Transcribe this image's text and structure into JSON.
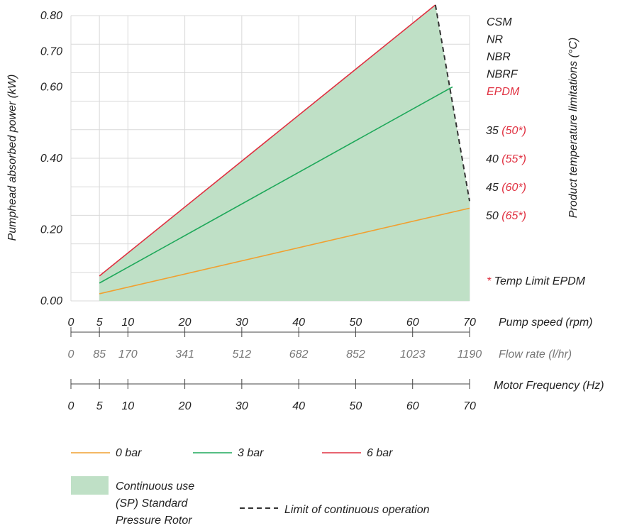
{
  "chart_data": {
    "type": "line",
    "y_axis": {
      "label": "Pumphead absorbed power (kW)",
      "ticks": [
        "0.00",
        "0.20",
        "0.40",
        "0.60",
        "0.70",
        "0.80"
      ],
      "ylim": [
        0,
        0.8
      ]
    },
    "x_axes": [
      {
        "label": "Pump speed (rpm)",
        "ticks": [
          "0",
          "5",
          "10",
          "20",
          "30",
          "40",
          "50",
          "60",
          "70"
        ]
      },
      {
        "label": "Flow rate (l/hr)",
        "ticks": [
          "0",
          "85",
          "170",
          "341",
          "512",
          "682",
          "852",
          "1023",
          "1190"
        ]
      },
      {
        "label": "Motor Frequency (Hz)",
        "ticks": [
          "0",
          "5",
          "10",
          "20",
          "30",
          "40",
          "50",
          "60",
          "70"
        ]
      }
    ],
    "xlim": [
      0,
      70
    ],
    "series": [
      {
        "name": "0 bar",
        "color": "#f0a030",
        "x": [
          5,
          70
        ],
        "y": [
          0.02,
          0.26
        ]
      },
      {
        "name": "3 bar",
        "color": "#1ea85a",
        "x": [
          5,
          67
        ],
        "y": [
          0.05,
          0.6
        ]
      },
      {
        "name": "6 bar",
        "color": "#e03040",
        "x": [
          5,
          64
        ],
        "y": [
          0.07,
          0.83
        ]
      }
    ],
    "region": {
      "name": "Continuous use (SP) Standard Pressure Rotor",
      "color": "#bfe0c6",
      "polygon": [
        [
          5,
          0.0
        ],
        [
          5,
          0.07
        ],
        [
          64,
          0.83
        ],
        [
          70,
          0.28
        ],
        [
          70,
          0.0
        ]
      ]
    },
    "limit_line": {
      "name": "Limit of continuous operation",
      "points": [
        [
          64,
          0.83
        ],
        [
          70,
          0.28
        ]
      ]
    },
    "right_axis": {
      "label": "Product temperature limitations (°C)",
      "materials": [
        {
          "text": "CSM",
          "color": "#222222"
        },
        {
          "text": "NR",
          "color": "#222222"
        },
        {
          "text": "NBR",
          "color": "#222222"
        },
        {
          "text": "NBRF",
          "color": "#222222"
        },
        {
          "text": "EPDM",
          "color": "#e03040"
        }
      ],
      "temps": [
        {
          "value": "35",
          "epdm": "(50*)"
        },
        {
          "value": "40",
          "epdm": "(55*)"
        },
        {
          "value": "45",
          "epdm": "(60*)"
        },
        {
          "value": "50",
          "epdm": "(65*)"
        }
      ],
      "footnote_mark": "*",
      "footnote_text": "Temp Limit EPDM"
    },
    "legend": {
      "placement": "bottom-left",
      "items": [
        "0 bar",
        "3 bar",
        "6 bar"
      ],
      "region_lines": [
        "Continuous use",
        "(SP) Standard",
        "Pressure Rotor"
      ],
      "limit_label": "Limit of continuous operation"
    }
  }
}
